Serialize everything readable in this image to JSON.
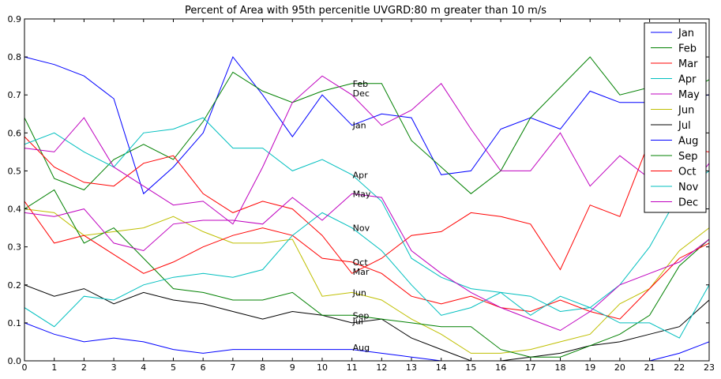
{
  "chart_data": {
    "type": "line",
    "title": "Percent of Area with 95th percenitle UVGRD:80 m greater than 10 m/s",
    "xlabel": "",
    "ylabel": "",
    "xlim": [
      0,
      23
    ],
    "ylim": [
      0,
      0.9
    ],
    "x": [
      0,
      1,
      2,
      3,
      4,
      5,
      6,
      7,
      8,
      9,
      10,
      11,
      12,
      13,
      14,
      15,
      16,
      17,
      18,
      19,
      20,
      21,
      22,
      23
    ],
    "xticks": [
      "0",
      "1",
      "2",
      "3",
      "4",
      "5",
      "6",
      "7",
      "8",
      "9",
      "10",
      "11",
      "12",
      "13",
      "14",
      "15",
      "16",
      "17",
      "18",
      "19",
      "20",
      "21",
      "22",
      "23"
    ],
    "yticks": [
      "0.0",
      "0.1",
      "0.2",
      "0.3",
      "0.4",
      "0.5",
      "0.6",
      "0.7",
      "0.8",
      "0.9"
    ],
    "grid": false,
    "legend_position": "top-right",
    "series": [
      {
        "name": "Jan",
        "color": "#0000ff",
        "values": [
          0.8,
          0.78,
          0.75,
          0.69,
          0.44,
          0.51,
          0.6,
          0.8,
          0.7,
          0.59,
          0.7,
          0.62,
          0.65,
          0.64,
          0.49,
          0.5,
          0.61,
          0.64,
          0.61,
          0.71,
          0.68,
          0.68,
          0.69,
          0.7
        ]
      },
      {
        "name": "Feb",
        "color": "#008000",
        "values": [
          0.64,
          0.48,
          0.45,
          0.53,
          0.57,
          0.53,
          0.63,
          0.76,
          0.71,
          0.68,
          0.71,
          0.73,
          0.73,
          0.58,
          0.51,
          0.44,
          0.5,
          0.64,
          0.72,
          0.8,
          0.7,
          0.72,
          0.7,
          0.74
        ]
      },
      {
        "name": "Mar",
        "color": "#ff0000",
        "values": [
          0.59,
          0.51,
          0.47,
          0.46,
          0.52,
          0.54,
          0.44,
          0.39,
          0.42,
          0.4,
          0.33,
          0.23,
          0.27,
          0.33,
          0.34,
          0.39,
          0.38,
          0.36,
          0.24,
          0.41,
          0.38,
          0.58,
          0.56,
          0.55
        ]
      },
      {
        "name": "Apr",
        "color": "#00bfbf",
        "values": [
          0.57,
          0.6,
          0.55,
          0.51,
          0.6,
          0.61,
          0.64,
          0.56,
          0.56,
          0.5,
          0.53,
          0.49,
          0.42,
          0.27,
          0.22,
          0.19,
          0.18,
          0.17,
          0.13,
          0.14,
          0.2,
          0.3,
          0.44,
          0.5
        ]
      },
      {
        "name": "May",
        "color": "#bf00bf",
        "values": [
          0.56,
          0.55,
          0.64,
          0.51,
          0.46,
          0.41,
          0.42,
          0.36,
          0.51,
          0.68,
          0.75,
          0.7,
          0.62,
          0.66,
          0.73,
          0.61,
          0.5,
          0.5,
          0.6,
          0.46,
          0.54,
          0.48,
          0.42,
          0.52
        ]
      },
      {
        "name": "Jun",
        "color": "#bfbf00",
        "values": [
          0.4,
          0.39,
          0.33,
          0.34,
          0.35,
          0.38,
          0.34,
          0.31,
          0.31,
          0.32,
          0.17,
          0.18,
          0.16,
          0.11,
          0.07,
          0.02,
          0.02,
          0.03,
          0.05,
          0.07,
          0.15,
          0.19,
          0.29,
          0.35
        ]
      },
      {
        "name": "Jul",
        "color": "#000000",
        "values": [
          0.2,
          0.17,
          0.19,
          0.15,
          0.18,
          0.16,
          0.15,
          0.13,
          0.11,
          0.13,
          0.12,
          0.1,
          0.11,
          0.06,
          0.03,
          0.0,
          0.0,
          0.01,
          0.02,
          0.04,
          0.05,
          0.07,
          0.09,
          0.16
        ]
      },
      {
        "name": "Aug",
        "color": "#0000ff",
        "values": [
          0.1,
          0.07,
          0.05,
          0.06,
          0.05,
          0.03,
          0.02,
          0.03,
          0.03,
          0.03,
          0.03,
          0.03,
          0.02,
          0.01,
          0.0,
          0.0,
          0.0,
          0.0,
          0.0,
          0.0,
          0.0,
          0.0,
          0.02,
          0.05
        ]
      },
      {
        "name": "Sep",
        "color": "#008000",
        "values": [
          0.4,
          0.45,
          0.31,
          0.35,
          0.27,
          0.19,
          0.18,
          0.16,
          0.16,
          0.18,
          0.12,
          0.12,
          0.11,
          0.1,
          0.09,
          0.09,
          0.03,
          0.01,
          0.01,
          0.04,
          0.07,
          0.12,
          0.25,
          0.32
        ]
      },
      {
        "name": "Oct",
        "color": "#ff0000",
        "values": [
          0.42,
          0.31,
          0.33,
          0.28,
          0.23,
          0.26,
          0.3,
          0.33,
          0.35,
          0.33,
          0.27,
          0.26,
          0.23,
          0.17,
          0.15,
          0.17,
          0.14,
          0.13,
          0.16,
          0.13,
          0.11,
          0.19,
          0.27,
          0.31
        ]
      },
      {
        "name": "Nov",
        "color": "#00bfbf",
        "values": [
          0.14,
          0.09,
          0.17,
          0.16,
          0.2,
          0.22,
          0.23,
          0.22,
          0.24,
          0.33,
          0.39,
          0.35,
          0.29,
          0.2,
          0.12,
          0.14,
          0.18,
          0.12,
          0.17,
          0.14,
          0.1,
          0.1,
          0.06,
          0.2
        ]
      },
      {
        "name": "Dec",
        "color": "#bf00bf",
        "values": [
          0.39,
          0.38,
          0.4,
          0.31,
          0.29,
          0.36,
          0.37,
          0.37,
          0.36,
          0.43,
          0.37,
          0.44,
          0.43,
          0.29,
          0.23,
          0.18,
          0.14,
          0.11,
          0.08,
          0.13,
          0.2,
          0.23,
          0.26,
          0.32
        ]
      }
    ],
    "annotations": [
      {
        "text": "Feb",
        "x": 11,
        "y": 0.73
      },
      {
        "text": "Dec",
        "x": 11,
        "y": 0.705
      },
      {
        "text": "Jan",
        "x": 11,
        "y": 0.62
      },
      {
        "text": "Apr",
        "x": 11,
        "y": 0.49
      },
      {
        "text": "May",
        "x": 11,
        "y": 0.44
      },
      {
        "text": "Nov",
        "x": 11,
        "y": 0.35
      },
      {
        "text": "Oct",
        "x": 11,
        "y": 0.26
      },
      {
        "text": "Mar",
        "x": 11,
        "y": 0.235
      },
      {
        "text": "Jun",
        "x": 11,
        "y": 0.18
      },
      {
        "text": "Sep",
        "x": 11,
        "y": 0.12
      },
      {
        "text": "Jul",
        "x": 11,
        "y": 0.105
      },
      {
        "text": "Aug",
        "x": 11,
        "y": 0.035
      }
    ]
  }
}
